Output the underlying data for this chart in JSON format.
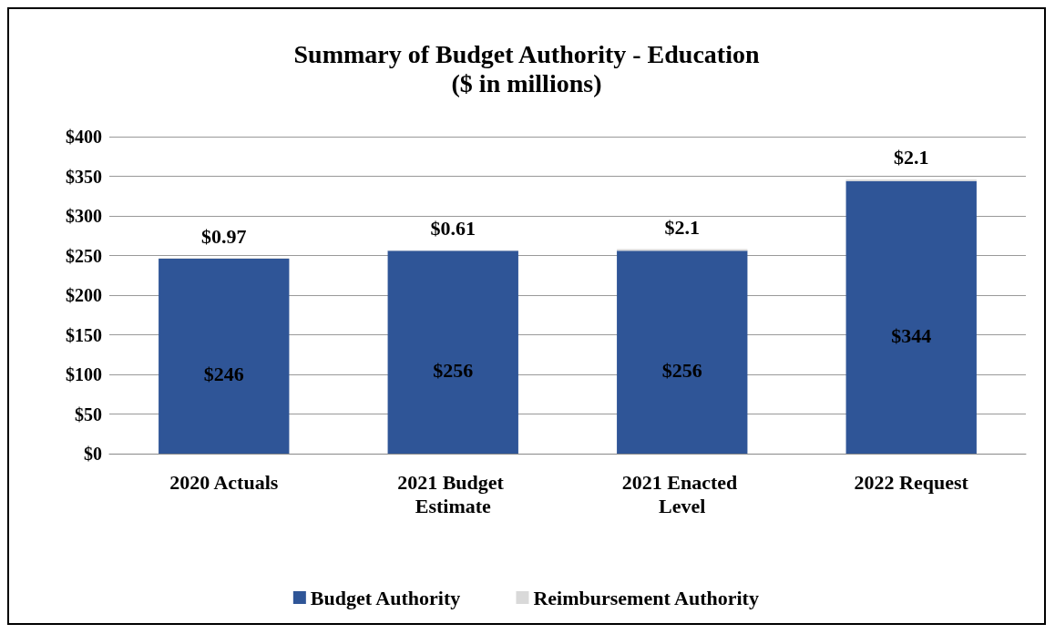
{
  "chart_data": {
    "type": "bar",
    "title": "Summary of Budget Authority - Education",
    "subtitle": "($ in millions)",
    "categories": [
      "2020 Actuals",
      "2021 Budget Estimate",
      "2021 Enacted Level",
      "2022 Request"
    ],
    "stacked": true,
    "series": [
      {
        "name": "Budget Authority",
        "color": "#2f5597",
        "values": [
          246,
          256,
          256,
          344
        ],
        "value_labels": [
          "$246",
          "$256",
          "$256",
          "$344"
        ]
      },
      {
        "name": "Reimbursement Authority",
        "color": "#d9d9d9",
        "values": [
          0.97,
          0.61,
          2.1,
          2.1
        ],
        "value_labels": [
          "$0.97",
          "$0.61",
          "$2.1",
          "$2.1"
        ]
      }
    ],
    "ylim": [
      0,
      400
    ],
    "yticks": [
      {
        "value": 0,
        "label": "$0"
      },
      {
        "value": 50,
        "label": "$50"
      },
      {
        "value": 100,
        "label": "$100"
      },
      {
        "value": 150,
        "label": "$150"
      },
      {
        "value": 200,
        "label": "$200"
      },
      {
        "value": 250,
        "label": "$250"
      },
      {
        "value": 300,
        "label": "$300"
      },
      {
        "value": 350,
        "label": "$350"
      },
      {
        "value": 400,
        "label": "$400"
      }
    ],
    "grid": "y",
    "legend": "bottom"
  }
}
